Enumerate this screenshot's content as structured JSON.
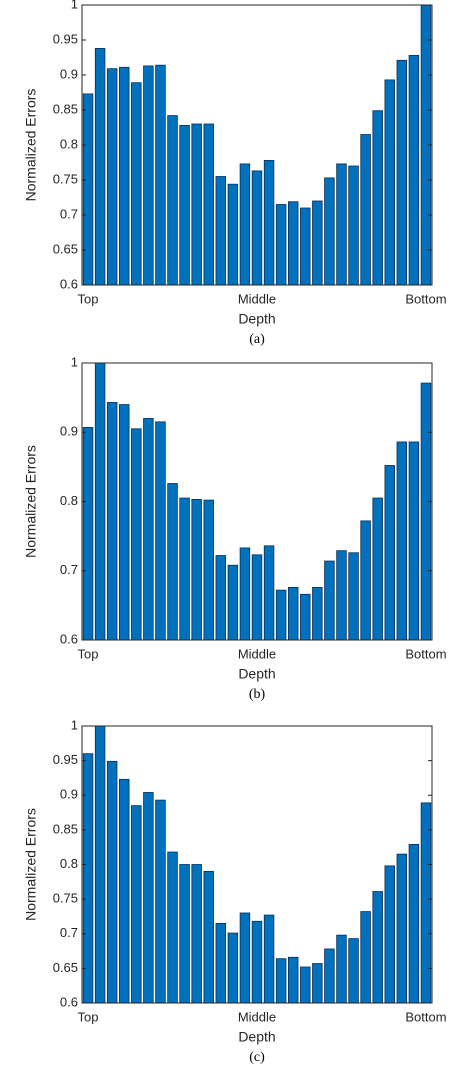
{
  "chart_data": [
    {
      "type": "bar",
      "ylabel": "Normalized Errors",
      "xlabel": "Depth",
      "caption": "(a)",
      "color": "#0072bd",
      "categories": [
        "Top",
        null,
        null,
        null,
        null,
        null,
        null,
        null,
        null,
        null,
        null,
        null,
        null,
        null,
        "Middle",
        null,
        null,
        null,
        null,
        null,
        null,
        null,
        null,
        null,
        null,
        null,
        null,
        null,
        "Bottom"
      ],
      "values": [
        0.873,
        0.938,
        0.909,
        0.911,
        0.889,
        0.913,
        0.914,
        0.842,
        0.828,
        0.83,
        0.83,
        0.755,
        0.744,
        0.773,
        0.763,
        0.778,
        0.715,
        0.719,
        0.71,
        0.72,
        0.753,
        0.773,
        0.77,
        0.815,
        0.849,
        0.893,
        0.921,
        0.928,
        1.0
      ],
      "ylim": [
        0.6,
        1
      ],
      "yticks": [
        0.6,
        0.65,
        0.7,
        0.75,
        0.8,
        0.85,
        0.9,
        0.95,
        1
      ]
    },
    {
      "type": "bar",
      "ylabel": "Normalized Errors",
      "xlabel": "Depth",
      "caption": "(b)",
      "color": "#0072bd",
      "categories": [
        "Top",
        null,
        null,
        null,
        null,
        null,
        null,
        null,
        null,
        null,
        null,
        null,
        null,
        null,
        "Middle",
        null,
        null,
        null,
        null,
        null,
        null,
        null,
        null,
        null,
        null,
        null,
        null,
        null,
        "Bottom"
      ],
      "values": [
        0.907,
        1.0,
        0.943,
        0.94,
        0.905,
        0.92,
        0.915,
        0.826,
        0.805,
        0.803,
        0.802,
        0.722,
        0.708,
        0.733,
        0.723,
        0.736,
        0.672,
        0.676,
        0.666,
        0.676,
        0.714,
        0.729,
        0.726,
        0.772,
        0.805,
        0.852,
        0.886,
        0.886,
        0.971
      ],
      "ylim": [
        0.6,
        1
      ],
      "yticks": [
        0.6,
        0.7,
        0.8,
        0.9,
        1
      ]
    },
    {
      "type": "bar",
      "ylabel": "Normalized Errors",
      "xlabel": "Depth",
      "caption": "(c)",
      "color": "#0072bd",
      "categories": [
        "Top",
        null,
        null,
        null,
        null,
        null,
        null,
        null,
        null,
        null,
        null,
        null,
        null,
        null,
        "Middle",
        null,
        null,
        null,
        null,
        null,
        null,
        null,
        null,
        null,
        null,
        null,
        null,
        null,
        "Bottom"
      ],
      "values": [
        0.96,
        1.0,
        0.949,
        0.923,
        0.885,
        0.904,
        0.893,
        0.818,
        0.8,
        0.8,
        0.79,
        0.715,
        0.701,
        0.73,
        0.718,
        0.727,
        0.664,
        0.666,
        0.652,
        0.657,
        0.678,
        0.698,
        0.693,
        0.732,
        0.761,
        0.798,
        0.815,
        0.829,
        0.889
      ],
      "ylim": [
        0.6,
        1
      ],
      "yticks": [
        0.6,
        0.65,
        0.7,
        0.75,
        0.8,
        0.85,
        0.9,
        0.95,
        1
      ]
    }
  ]
}
